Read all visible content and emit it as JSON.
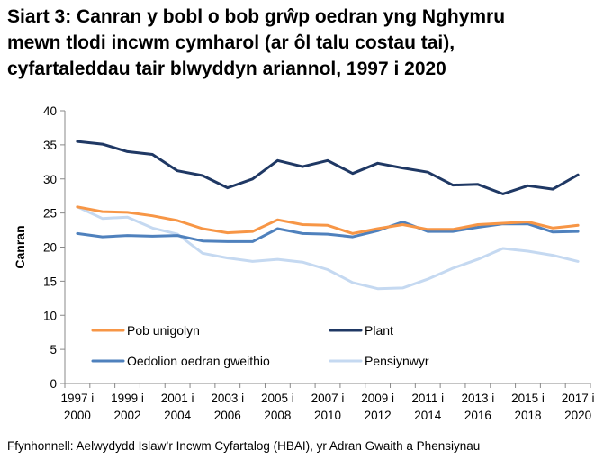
{
  "chart_data": {
    "type": "line",
    "title_lines": [
      "Siart 3: Canran y bobl o bob grŵp oedran yng Nghymru",
      "mewn tlodi incwm cymharol (ar ôl talu costau tai),",
      "cyfartaleddau tair blwyddyn ariannol, 1997 i 2020"
    ],
    "ylabel": "Canran",
    "xlabel": "",
    "ylim": [
      0,
      40
    ],
    "yticks": [
      0,
      5,
      10,
      15,
      20,
      25,
      30,
      35,
      40
    ],
    "grid": false,
    "legend_position": "bottom-center",
    "x_tick_labels": [
      {
        "line1": "1997 i",
        "line2": "2000"
      },
      {
        "line1": "1999 i",
        "line2": "2002"
      },
      {
        "line1": "2001 i",
        "line2": "2004"
      },
      {
        "line1": "2003 i",
        "line2": "2006"
      },
      {
        "line1": "2005 i",
        "line2": "2008"
      },
      {
        "line1": "2007 i",
        "line2": "2010"
      },
      {
        "line1": "2009 i",
        "line2": "2012"
      },
      {
        "line1": "2011 i",
        "line2": "2014"
      },
      {
        "line1": "2013 i",
        "line2": "2016"
      },
      {
        "line1": "2015 i",
        "line2": "2018"
      },
      {
        "line1": "2017 i",
        "line2": "2020"
      }
    ],
    "categories": [
      "1997-2000",
      "1998-2001",
      "1999-2002",
      "2000-2003",
      "2001-2004",
      "2002-2005",
      "2003-2006",
      "2004-2007",
      "2005-2008",
      "2006-2009",
      "2007-2010",
      "2008-2011",
      "2009-2012",
      "2010-2013",
      "2011-2014",
      "2012-2015",
      "2013-2016",
      "2014-2017",
      "2015-2018",
      "2016-2019",
      "2017-2020"
    ],
    "series": [
      {
        "name": "Pob unigolyn",
        "color": "#F79646",
        "values": [
          25.9,
          25.2,
          25.1,
          24.6,
          23.9,
          22.7,
          22.1,
          22.3,
          24.0,
          23.3,
          23.2,
          22.0,
          22.7,
          23.3,
          22.6,
          22.6,
          23.3,
          23.5,
          23.7,
          22.8,
          23.2
        ]
      },
      {
        "name": "Plant",
        "color": "#1F3864",
        "values": [
          35.5,
          35.1,
          34.0,
          33.6,
          31.2,
          30.5,
          28.7,
          30.0,
          32.7,
          31.8,
          32.7,
          30.8,
          32.3,
          31.6,
          31.0,
          29.1,
          29.2,
          27.8,
          29.0,
          28.5,
          30.6
        ]
      },
      {
        "name": "Oedolion oedran gweithio",
        "color": "#4F81BD",
        "values": [
          22.0,
          21.5,
          21.7,
          21.6,
          21.7,
          20.9,
          20.8,
          20.8,
          22.7,
          22.0,
          21.9,
          21.5,
          22.4,
          23.7,
          22.3,
          22.3,
          22.9,
          23.4,
          23.4,
          22.2,
          22.3
        ]
      },
      {
        "name": "Pensiynwyr",
        "color": "#C5D9F1",
        "values": [
          25.9,
          24.2,
          24.4,
          22.8,
          21.9,
          19.1,
          18.4,
          17.9,
          18.2,
          17.8,
          16.7,
          14.8,
          13.9,
          14.0,
          15.3,
          16.9,
          18.2,
          19.8,
          19.4,
          18.8,
          17.9
        ]
      }
    ]
  },
  "source_note": "Ffynhonnell: Aelwydydd Islaw’r Incwm Cyfartalog (HBAI), yr Adran Gwaith a Phensiynau"
}
